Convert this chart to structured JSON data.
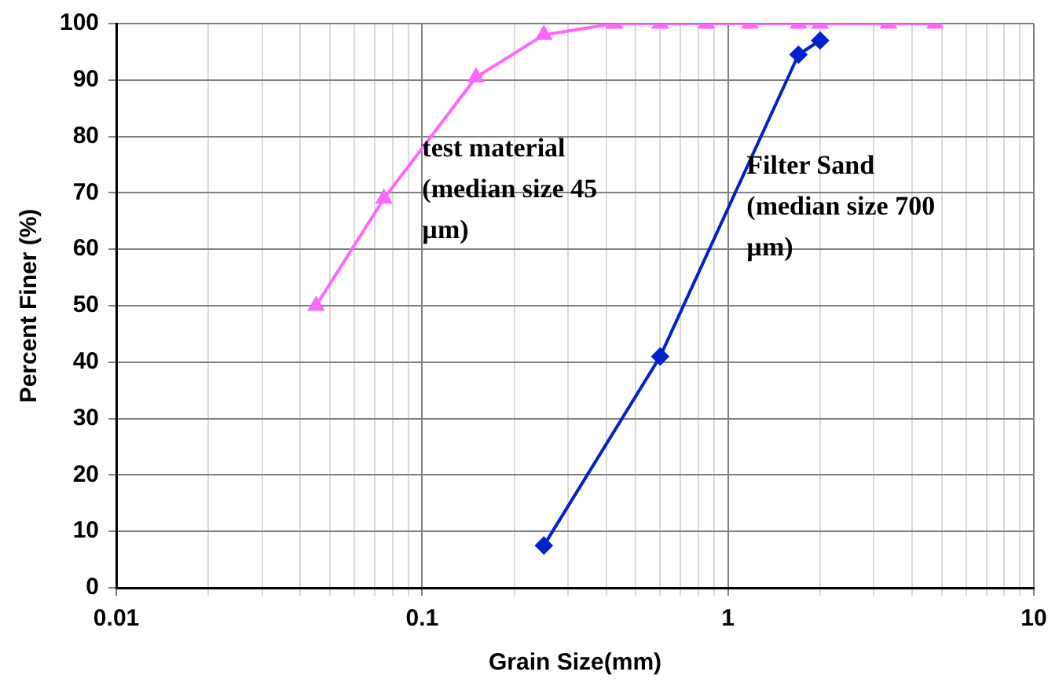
{
  "chart_data": {
    "type": "line",
    "xlabel": "Grain Size(mm)",
    "ylabel": "Percent Finer (%)",
    "log": "x",
    "xlim": [
      0.01,
      10
    ],
    "xticks": [
      0.01,
      0.1,
      1,
      10
    ],
    "ylim": [
      0,
      100
    ],
    "yticks": [
      0,
      10,
      20,
      30,
      40,
      50,
      60,
      70,
      80,
      90,
      100
    ],
    "grid": true,
    "legend": false,
    "series": [
      {
        "color": "#ff66ff",
        "marker": "triangle",
        "x": [
          0.045,
          0.075,
          0.15,
          0.25,
          0.425,
          0.6,
          0.85,
          1.18,
          1.7,
          2.0,
          3.35,
          4.75
        ],
        "values": [
          50,
          69,
          90.5,
          98,
          100,
          100,
          100,
          100,
          100,
          100,
          100,
          100
        ]
      },
      {
        "color": "#0022cc",
        "marker": "diamond",
        "x": [
          0.25,
          0.6,
          1.7,
          2.0
        ],
        "values": [
          7.5,
          41,
          94.5,
          97
        ]
      }
    ],
    "annotations": [
      {
        "text": "test material (median size 45 µm)",
        "x": 0.1,
        "y": 80
      },
      {
        "text": "Filter Sand (median size 700 µm)",
        "x": 1.15,
        "y": 77
      }
    ]
  }
}
